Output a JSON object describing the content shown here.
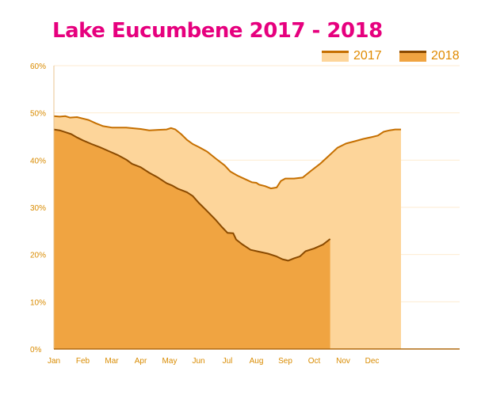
{
  "chart_data": {
    "type": "area",
    "title": "Lake Eucumbene 2017 - 2018",
    "xlabel": "",
    "ylabel": "",
    "categories": [
      "Jan",
      "Feb",
      "Mar",
      "Apr",
      "May",
      "Jun",
      "Jul",
      "Aug",
      "Sep",
      "Oct",
      "Nov",
      "Dec"
    ],
    "ylim": [
      0,
      60
    ],
    "yticks": [
      "0%",
      "10%",
      "20%",
      "30%",
      "40%",
      "50%",
      "60%"
    ],
    "grid": true,
    "legend_position": "top-right",
    "series": [
      {
        "name": "2017",
        "fill": "#fdd59a",
        "line": "#c56f00",
        "points": [
          [
            0.0,
            49.3
          ],
          [
            0.2,
            49.2
          ],
          [
            0.4,
            49.3
          ],
          [
            0.55,
            49.0
          ],
          [
            0.8,
            49.1
          ],
          [
            1.0,
            48.8
          ],
          [
            1.2,
            48.5
          ],
          [
            1.45,
            47.8
          ],
          [
            1.7,
            47.2
          ],
          [
            2.0,
            46.9
          ],
          [
            2.5,
            46.9
          ],
          [
            3.0,
            46.6
          ],
          [
            3.3,
            46.3
          ],
          [
            3.6,
            46.4
          ],
          [
            3.9,
            46.5
          ],
          [
            4.05,
            46.8
          ],
          [
            4.2,
            46.5
          ],
          [
            4.4,
            45.5
          ],
          [
            4.6,
            44.3
          ],
          [
            4.8,
            43.4
          ],
          [
            5.0,
            42.8
          ],
          [
            5.3,
            41.8
          ],
          [
            5.6,
            40.3
          ],
          [
            5.9,
            38.9
          ],
          [
            6.1,
            37.6
          ],
          [
            6.35,
            36.7
          ],
          [
            6.6,
            36.0
          ],
          [
            6.85,
            35.3
          ],
          [
            7.0,
            35.2
          ],
          [
            7.1,
            34.8
          ],
          [
            7.3,
            34.5
          ],
          [
            7.5,
            34.0
          ],
          [
            7.7,
            34.2
          ],
          [
            7.85,
            35.6
          ],
          [
            8.0,
            36.1
          ],
          [
            8.3,
            36.1
          ],
          [
            8.6,
            36.3
          ],
          [
            8.9,
            37.8
          ],
          [
            9.2,
            39.2
          ],
          [
            9.5,
            40.9
          ],
          [
            9.8,
            42.6
          ],
          [
            10.1,
            43.5
          ],
          [
            10.4,
            44.0
          ],
          [
            10.7,
            44.5
          ],
          [
            11.0,
            44.9
          ],
          [
            11.2,
            45.2
          ],
          [
            11.4,
            46.0
          ],
          [
            11.6,
            46.3
          ],
          [
            11.8,
            46.5
          ],
          [
            12.0,
            46.5
          ]
        ]
      },
      {
        "name": "2018",
        "fill": "#f0a441",
        "line": "#8a4a00",
        "points": [
          [
            0.0,
            46.5
          ],
          [
            0.2,
            46.3
          ],
          [
            0.4,
            45.9
          ],
          [
            0.6,
            45.5
          ],
          [
            0.8,
            44.8
          ],
          [
            1.0,
            44.2
          ],
          [
            1.3,
            43.4
          ],
          [
            1.6,
            42.7
          ],
          [
            1.9,
            41.9
          ],
          [
            2.2,
            41.1
          ],
          [
            2.5,
            40.1
          ],
          [
            2.7,
            39.2
          ],
          [
            3.0,
            38.5
          ],
          [
            3.3,
            37.3
          ],
          [
            3.6,
            36.3
          ],
          [
            3.9,
            35.1
          ],
          [
            4.1,
            34.6
          ],
          [
            4.3,
            33.9
          ],
          [
            4.6,
            33.2
          ],
          [
            4.8,
            32.4
          ],
          [
            5.0,
            31.0
          ],
          [
            5.3,
            29.2
          ],
          [
            5.6,
            27.3
          ],
          [
            5.8,
            25.9
          ],
          [
            6.0,
            24.6
          ],
          [
            6.2,
            24.5
          ],
          [
            6.3,
            23.2
          ],
          [
            6.5,
            22.2
          ],
          [
            6.8,
            21.0
          ],
          [
            7.1,
            20.6
          ],
          [
            7.4,
            20.2
          ],
          [
            7.7,
            19.6
          ],
          [
            7.9,
            19.0
          ],
          [
            8.1,
            18.7
          ],
          [
            8.3,
            19.2
          ],
          [
            8.5,
            19.6
          ],
          [
            8.7,
            20.7
          ],
          [
            9.0,
            21.3
          ],
          [
            9.3,
            22.1
          ],
          [
            9.55,
            23.3
          ]
        ]
      }
    ]
  }
}
